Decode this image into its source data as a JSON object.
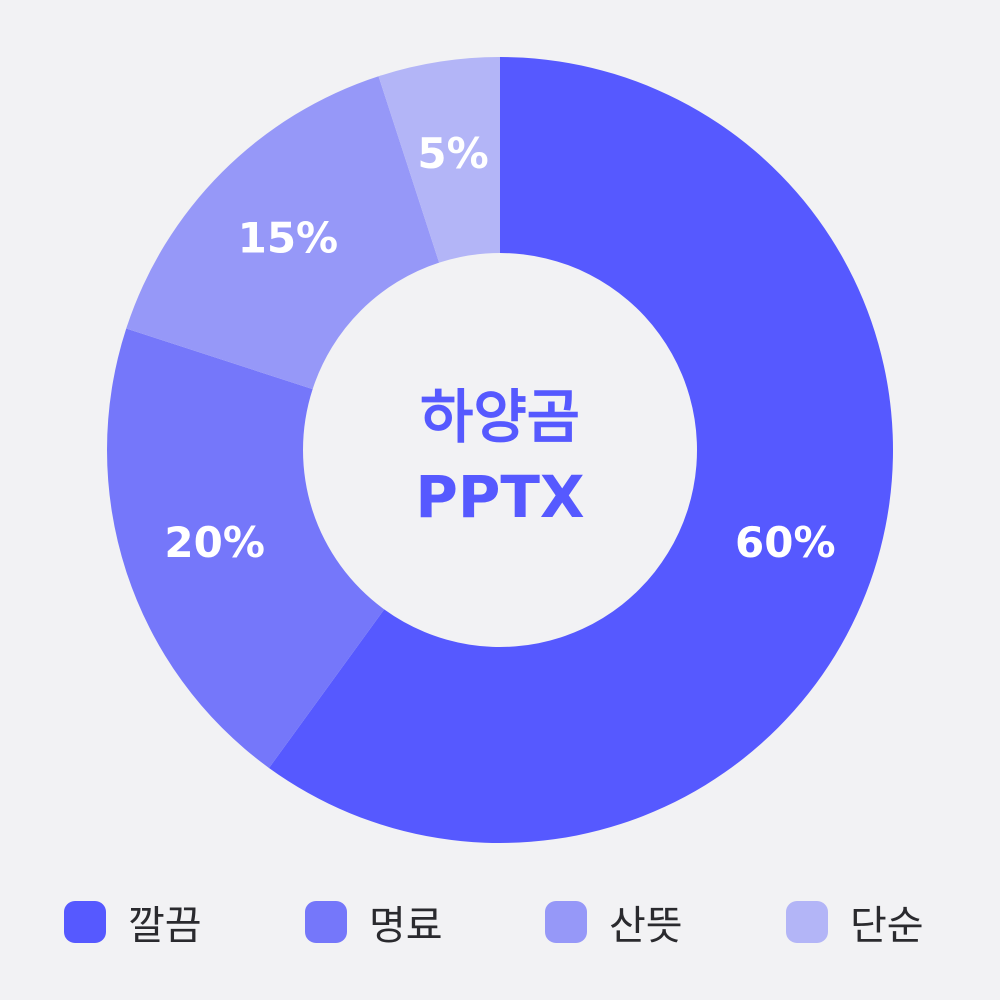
{
  "chart_data": {
    "type": "pie",
    "variant": "donut",
    "title": "",
    "center_text": [
      "하양곰",
      "PPTX"
    ],
    "categories": [
      "깔끔",
      "명료",
      "산뜻",
      "단순"
    ],
    "values": [
      60,
      20,
      15,
      5
    ],
    "data_labels": [
      "60%",
      "20%",
      "15%",
      "5%"
    ],
    "colors": [
      "#5659ff",
      "#7577fa",
      "#9698f8",
      "#b3b5f7"
    ],
    "center_text_color": "#5659ff",
    "legend_position": "bottom",
    "start_angle": "top, clockwise"
  }
}
